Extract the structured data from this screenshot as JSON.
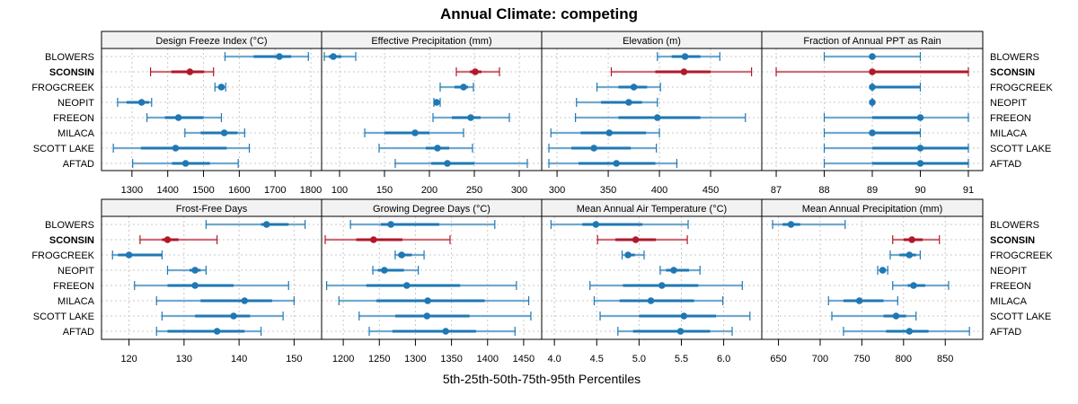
{
  "chart_data": {
    "type": "dot-interval",
    "title": "Annual Climate: competing",
    "xlabel": "5th-25th-50th-75th-95th Percentiles",
    "highlight": "SCONSIN",
    "colors": {
      "default": "#1f78b4",
      "highlight": "#b2182b",
      "grid": "#c8c8c8",
      "strip": "#f2f2f2"
    },
    "grid": true,
    "categories": [
      "BLOWERS",
      "SCONSIN",
      "FROGCREEK",
      "NEOPIT",
      "FREEON",
      "MILACA",
      "SCOTT LAKE",
      "AFTAD"
    ],
    "panels": [
      {
        "title": "Design Freeze Index (°C)",
        "xlim": [
          1215,
          1830
        ],
        "ticks": [
          1300,
          1400,
          1500,
          1600,
          1700,
          1800
        ],
        "rows": [
          {
            "site": "BLOWERS",
            "p5": 1560,
            "p25": 1640,
            "p50": 1712,
            "p75": 1745,
            "p95": 1793
          },
          {
            "site": "SCONSIN",
            "p5": 1352,
            "p25": 1410,
            "p50": 1462,
            "p75": 1502,
            "p95": 1528
          },
          {
            "site": "FROGCREEK",
            "p5": 1532,
            "p25": 1542,
            "p50": 1550,
            "p75": 1557,
            "p95": 1562
          },
          {
            "site": "NEOPIT",
            "p5": 1260,
            "p25": 1285,
            "p50": 1327,
            "p75": 1348,
            "p95": 1355
          },
          {
            "site": "FREEON",
            "p5": 1342,
            "p25": 1392,
            "p50": 1430,
            "p75": 1500,
            "p95": 1550
          },
          {
            "site": "MILACA",
            "p5": 1448,
            "p25": 1492,
            "p50": 1558,
            "p75": 1595,
            "p95": 1615
          },
          {
            "site": "SCOTT LAKE",
            "p5": 1248,
            "p25": 1325,
            "p50": 1422,
            "p75": 1565,
            "p95": 1628
          },
          {
            "site": "AFTAD",
            "p5": 1302,
            "p25": 1412,
            "p50": 1450,
            "p75": 1518,
            "p95": 1597
          }
        ]
      },
      {
        "title": "Effective Precipitation (mm)",
        "xlim": [
          80,
          325
        ],
        "ticks": [
          100,
          150,
          200,
          250,
          300
        ],
        "rows": [
          {
            "site": "BLOWERS",
            "p5": 83,
            "p25": 88,
            "p50": 93,
            "p75": 102,
            "p95": 118
          },
          {
            "site": "SCONSIN",
            "p5": 230,
            "p25": 245,
            "p50": 251,
            "p75": 258,
            "p95": 278
          },
          {
            "site": "FROGCREEK",
            "p5": 212,
            "p25": 228,
            "p50": 238,
            "p75": 243,
            "p95": 249
          },
          {
            "site": "NEOPIT",
            "p5": 205,
            "p25": 206,
            "p50": 208,
            "p75": 210,
            "p95": 212
          },
          {
            "site": "FREEON",
            "p5": 204,
            "p25": 225,
            "p50": 246,
            "p75": 257,
            "p95": 289
          },
          {
            "site": "MILACA",
            "p5": 128,
            "p25": 150,
            "p50": 184,
            "p75": 200,
            "p95": 238
          },
          {
            "site": "SCOTT LAKE",
            "p5": 144,
            "p25": 196,
            "p50": 209,
            "p75": 222,
            "p95": 248
          },
          {
            "site": "AFTAD",
            "p5": 162,
            "p25": 202,
            "p50": 220,
            "p75": 250,
            "p95": 309
          }
        ]
      },
      {
        "title": "Elevation (m)",
        "xlim": [
          285,
          500
        ],
        "ticks": [
          300,
          350,
          400,
          450
        ],
        "rows": [
          {
            "site": "BLOWERS",
            "p5": 398,
            "p25": 412,
            "p50": 425,
            "p75": 440,
            "p95": 459
          },
          {
            "site": "SCONSIN",
            "p5": 353,
            "p25": 396,
            "p50": 424,
            "p75": 450,
            "p95": 490
          },
          {
            "site": "FROGCREEK",
            "p5": 339,
            "p25": 360,
            "p50": 375,
            "p75": 388,
            "p95": 401
          },
          {
            "site": "NEOPIT",
            "p5": 319,
            "p25": 343,
            "p50": 370,
            "p75": 383,
            "p95": 398
          },
          {
            "site": "FREEON",
            "p5": 318,
            "p25": 360,
            "p50": 398,
            "p75": 440,
            "p95": 484
          },
          {
            "site": "MILACA",
            "p5": 294,
            "p25": 323,
            "p50": 351,
            "p75": 387,
            "p95": 400
          },
          {
            "site": "SCOTT LAKE",
            "p5": 292,
            "p25": 314,
            "p50": 336,
            "p75": 372,
            "p95": 397
          },
          {
            "site": "AFTAD",
            "p5": 292,
            "p25": 321,
            "p50": 358,
            "p75": 396,
            "p95": 417
          }
        ]
      },
      {
        "title": "Fraction of Annual PPT as Rain",
        "xlim": [
          86.7,
          91.3
        ],
        "ticks": [
          87,
          88,
          89,
          90,
          91
        ],
        "rows": [
          {
            "site": "BLOWERS",
            "p5": 88,
            "p25": 89,
            "p50": 89,
            "p75": 89,
            "p95": 90
          },
          {
            "site": "SCONSIN",
            "p5": 87,
            "p25": 89,
            "p50": 89,
            "p75": 91,
            "p95": 91
          },
          {
            "site": "FROGCREEK",
            "p5": 89,
            "p25": 89,
            "p50": 89,
            "p75": 90,
            "p95": 90
          },
          {
            "site": "NEOPIT",
            "p5": 89,
            "p25": 89,
            "p50": 89,
            "p75": 89,
            "p95": 89
          },
          {
            "site": "FREEON",
            "p5": 88,
            "p25": 89,
            "p50": 90,
            "p75": 90,
            "p95": 91
          },
          {
            "site": "MILACA",
            "p5": 88,
            "p25": 89,
            "p50": 89,
            "p75": 90,
            "p95": 90
          },
          {
            "site": "SCOTT LAKE",
            "p5": 88,
            "p25": 89,
            "p50": 90,
            "p75": 91,
            "p95": 91
          },
          {
            "site": "AFTAD",
            "p5": 88,
            "p25": 89,
            "p50": 90,
            "p75": 91,
            "p95": 91
          }
        ]
      },
      {
        "title": "Frost-Free Days",
        "xlim": [
          115,
          155
        ],
        "ticks": [
          120,
          130,
          140,
          150
        ],
        "rows": [
          {
            "site": "BLOWERS",
            "p5": 134,
            "p25": 144,
            "p50": 145,
            "p75": 149,
            "p95": 152
          },
          {
            "site": "SCONSIN",
            "p5": 122,
            "p25": 126,
            "p50": 127,
            "p75": 129,
            "p95": 136
          },
          {
            "site": "FROGCREEK",
            "p5": 117,
            "p25": 118,
            "p50": 120,
            "p75": 126,
            "p95": 126
          },
          {
            "site": "NEOPIT",
            "p5": 127,
            "p25": 131,
            "p50": 132,
            "p75": 133,
            "p95": 134
          },
          {
            "site": "FREEON",
            "p5": 121,
            "p25": 127,
            "p50": 132,
            "p75": 139,
            "p95": 149
          },
          {
            "site": "MILACA",
            "p5": 125,
            "p25": 133,
            "p50": 141,
            "p75": 146,
            "p95": 150
          },
          {
            "site": "SCOTT LAKE",
            "p5": 126,
            "p25": 132,
            "p50": 139,
            "p75": 142,
            "p95": 148
          },
          {
            "site": "AFTAD",
            "p5": 125,
            "p25": 127,
            "p50": 136,
            "p75": 141,
            "p95": 144
          }
        ]
      },
      {
        "title": "Growing Degree Days (°C)",
        "xlim": [
          1170,
          1475
        ],
        "ticks": [
          1200,
          1250,
          1300,
          1350,
          1400,
          1450
        ],
        "rows": [
          {
            "site": "BLOWERS",
            "p5": 1210,
            "p25": 1252,
            "p50": 1266,
            "p75": 1333,
            "p95": 1410
          },
          {
            "site": "SCONSIN",
            "p5": 1175,
            "p25": 1218,
            "p50": 1242,
            "p75": 1282,
            "p95": 1348
          },
          {
            "site": "FROGCREEK",
            "p5": 1272,
            "p25": 1276,
            "p50": 1281,
            "p75": 1295,
            "p95": 1312
          },
          {
            "site": "NEOPIT",
            "p5": 1241,
            "p25": 1248,
            "p50": 1257,
            "p75": 1284,
            "p95": 1304
          },
          {
            "site": "FREEON",
            "p5": 1177,
            "p25": 1232,
            "p50": 1288,
            "p75": 1362,
            "p95": 1440
          },
          {
            "site": "MILACA",
            "p5": 1194,
            "p25": 1246,
            "p50": 1317,
            "p75": 1396,
            "p95": 1457
          },
          {
            "site": "SCOTT LAKE",
            "p5": 1222,
            "p25": 1272,
            "p50": 1316,
            "p75": 1375,
            "p95": 1460
          },
          {
            "site": "AFTAD",
            "p5": 1236,
            "p25": 1268,
            "p50": 1342,
            "p75": 1384,
            "p95": 1438
          }
        ]
      },
      {
        "title": "Mean Annual Air Temperature (°C)",
        "xlim": [
          3.85,
          6.45
        ],
        "ticks": [
          4.0,
          4.5,
          5.0,
          5.5,
          6.0
        ],
        "tick_labels": [
          "4.0",
          "4.5",
          "5.0",
          "5.5",
          "6.0"
        ],
        "rows": [
          {
            "site": "BLOWERS",
            "p5": 3.96,
            "p25": 4.33,
            "p50": 4.49,
            "p75": 5.04,
            "p95": 5.58
          },
          {
            "site": "SCONSIN",
            "p5": 4.51,
            "p25": 4.72,
            "p50": 4.96,
            "p75": 5.2,
            "p95": 5.57
          },
          {
            "site": "FROGCREEK",
            "p5": 4.8,
            "p25": 4.84,
            "p50": 4.87,
            "p75": 4.95,
            "p95": 5.06
          },
          {
            "site": "NEOPIT",
            "p5": 5.25,
            "p25": 5.32,
            "p50": 5.41,
            "p75": 5.59,
            "p95": 5.72
          },
          {
            "site": "FREEON",
            "p5": 4.42,
            "p25": 4.81,
            "p50": 5.27,
            "p75": 5.7,
            "p95": 6.22
          },
          {
            "site": "MILACA",
            "p5": 4.47,
            "p25": 4.77,
            "p50": 5.14,
            "p75": 5.65,
            "p95": 5.99
          },
          {
            "site": "SCOTT LAKE",
            "p5": 4.54,
            "p25": 5.0,
            "p50": 5.53,
            "p75": 5.91,
            "p95": 6.31
          },
          {
            "site": "AFTAD",
            "p5": 4.75,
            "p25": 4.93,
            "p50": 5.49,
            "p75": 5.84,
            "p95": 6.1
          }
        ]
      },
      {
        "title": "Mean Annual Precipitation (mm)",
        "xlim": [
          630,
          895
        ],
        "ticks": [
          650,
          700,
          750,
          800,
          850
        ],
        "rows": [
          {
            "site": "BLOWERS",
            "p5": 643,
            "p25": 655,
            "p50": 665,
            "p75": 676,
            "p95": 730
          },
          {
            "site": "SCONSIN",
            "p5": 787,
            "p25": 800,
            "p50": 810,
            "p75": 823,
            "p95": 843
          },
          {
            "site": "FROGCREEK",
            "p5": 784,
            "p25": 795,
            "p50": 807,
            "p75": 815,
            "p95": 820
          },
          {
            "site": "NEOPIT",
            "p5": 769,
            "p25": 772,
            "p50": 775,
            "p75": 778,
            "p95": 781
          },
          {
            "site": "FREEON",
            "p5": 787,
            "p25": 805,
            "p50": 812,
            "p75": 826,
            "p95": 854
          },
          {
            "site": "MILACA",
            "p5": 710,
            "p25": 728,
            "p50": 747,
            "p75": 776,
            "p95": 793
          },
          {
            "site": "SCOTT LAKE",
            "p5": 714,
            "p25": 776,
            "p50": 791,
            "p75": 803,
            "p95": 815
          },
          {
            "site": "AFTAD",
            "p5": 728,
            "p25": 779,
            "p50": 807,
            "p75": 830,
            "p95": 879
          }
        ]
      }
    ]
  }
}
